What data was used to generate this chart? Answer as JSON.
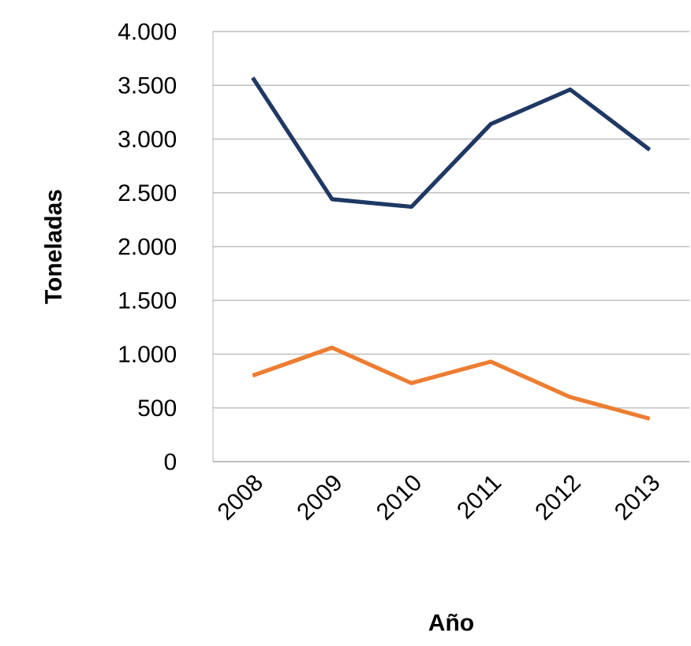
{
  "chart_data": {
    "type": "line",
    "xlabel": "Año",
    "ylabel": "Toneladas",
    "categories": [
      "2008",
      "2009",
      "2010",
      "2011",
      "2012",
      "2013"
    ],
    "series": [
      {
        "color": "#1f3864",
        "values": [
          3570,
          2440,
          2370,
          3140,
          3460,
          2900
        ]
      },
      {
        "color": "#ed7d31",
        "values": [
          800,
          1060,
          730,
          930,
          600,
          400
        ]
      }
    ],
    "ylim": [
      0,
      4000
    ],
    "yticks": [
      {
        "value": 0,
        "label": "0"
      },
      {
        "value": 500,
        "label": "500"
      },
      {
        "value": 1000,
        "label": "1.000"
      },
      {
        "value": 1500,
        "label": "1.500"
      },
      {
        "value": 2000,
        "label": "2.000"
      },
      {
        "value": 2500,
        "label": "2.500"
      },
      {
        "value": 3000,
        "label": "3.000"
      },
      {
        "value": 3500,
        "label": "3.500"
      },
      {
        "value": 4000,
        "label": "4.000"
      }
    ],
    "grid": "y",
    "marker": "none",
    "line_style": "solid"
  }
}
